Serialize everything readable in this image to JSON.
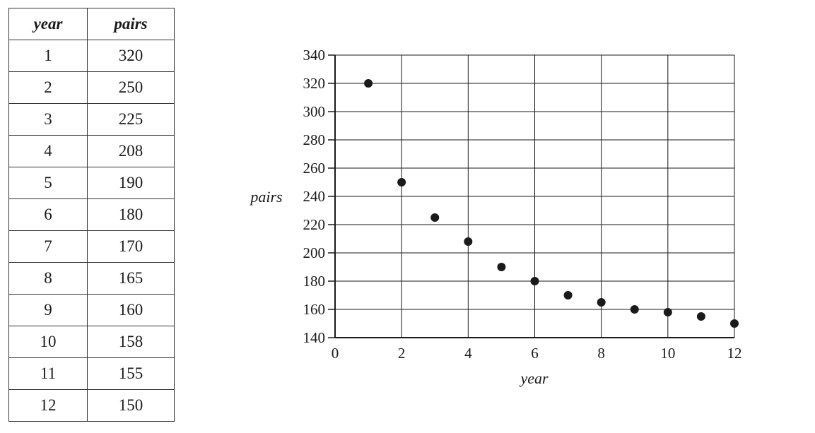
{
  "table": {
    "headers": [
      "year",
      "pairs"
    ],
    "rows": [
      [
        "1",
        "320"
      ],
      [
        "2",
        "250"
      ],
      [
        "3",
        "225"
      ],
      [
        "4",
        "208"
      ],
      [
        "5",
        "190"
      ],
      [
        "6",
        "180"
      ],
      [
        "7",
        "170"
      ],
      [
        "8",
        "165"
      ],
      [
        "9",
        "160"
      ],
      [
        "10",
        "158"
      ],
      [
        "11",
        "155"
      ],
      [
        "12",
        "150"
      ]
    ]
  },
  "chart_data": {
    "type": "scatter",
    "xlabel": "year",
    "ylabel": "pairs",
    "xlim": [
      0,
      12
    ],
    "ylim": [
      140,
      340
    ],
    "xticks": [
      0,
      2,
      4,
      6,
      8,
      10,
      12
    ],
    "yticks": [
      140,
      160,
      180,
      200,
      220,
      240,
      260,
      280,
      300,
      320,
      340
    ],
    "grid": true,
    "point_color": "#1a1a1a",
    "x": [
      1,
      2,
      3,
      4,
      5,
      6,
      7,
      8,
      9,
      10,
      11,
      12
    ],
    "y": [
      320,
      250,
      225,
      208,
      190,
      180,
      170,
      165,
      160,
      158,
      155,
      150
    ]
  }
}
